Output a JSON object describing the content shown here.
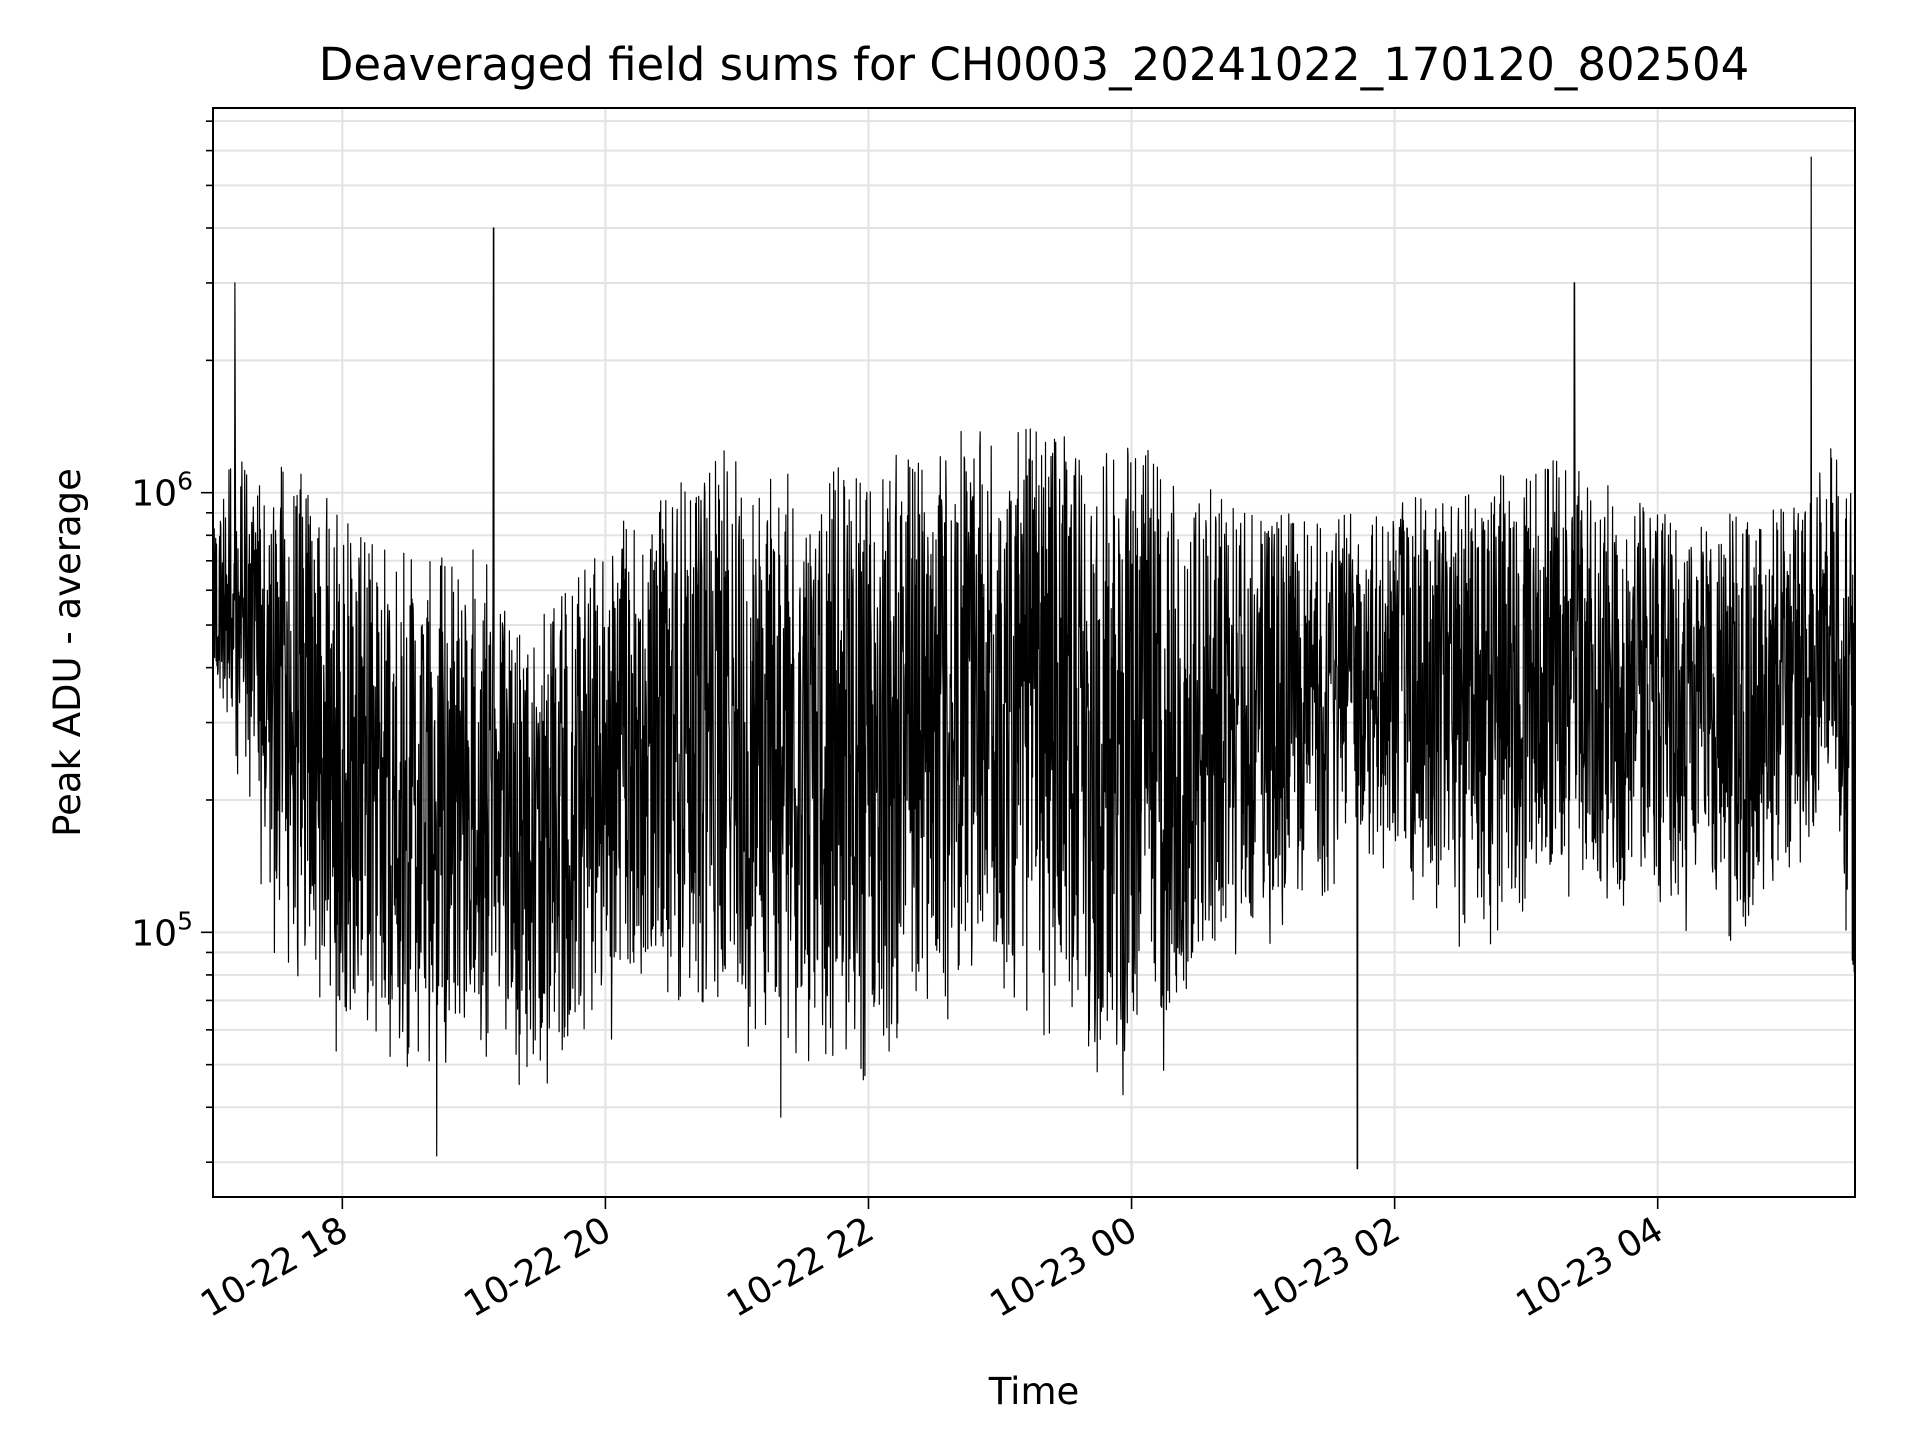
{
  "chart_data": {
    "type": "line",
    "title": "Deaveraged field sums for CH0003_20241022_170120_802504",
    "xlabel": "Time",
    "ylabel": "Peak ADU - average",
    "y_scale": "log",
    "ylim": [
      25000,
      7500000
    ],
    "xlim": [
      "2024-10-22 17:01",
      "2024-10-23 05:30"
    ],
    "grid": true,
    "line_color": "#000000",
    "x_ticks": [
      {
        "t": "2024-10-22 18:00",
        "label": "10-22 18"
      },
      {
        "t": "2024-10-22 20:00",
        "label": "10-22 20"
      },
      {
        "t": "2024-10-22 22:00",
        "label": "10-22 22"
      },
      {
        "t": "2024-10-23 00:00",
        "label": "10-23 00"
      },
      {
        "t": "2024-10-23 02:00",
        "label": "10-23 02"
      },
      {
        "t": "2024-10-23 04:00",
        "label": "10-23 04"
      }
    ],
    "y_ticks": [
      {
        "value": 100000,
        "base": "10",
        "exp": "5"
      },
      {
        "value": 1000000,
        "base": "10",
        "exp": "6"
      }
    ],
    "series": [
      {
        "x": [
          "2024-10-22 17:01",
          "2024-10-22 17:10",
          "2024-10-22 17:20",
          "2024-10-22 17:30",
          "2024-10-22 17:45",
          "2024-10-22 18:00",
          "2024-10-22 18:20",
          "2024-10-22 18:40",
          "2024-10-22 19:00",
          "2024-10-22 19:20",
          "2024-10-22 19:35",
          "2024-10-22 19:50",
          "2024-10-22 20:10",
          "2024-10-22 20:30",
          "2024-10-22 21:00",
          "2024-10-22 21:30",
          "2024-10-22 22:00",
          "2024-10-22 22:20",
          "2024-10-22 22:45",
          "2024-10-22 23:15",
          "2024-10-22 23:40",
          "2024-10-23 00:00",
          "2024-10-23 00:20",
          "2024-10-23 00:45",
          "2024-10-23 01:15",
          "2024-10-23 01:45",
          "2024-10-23 02:15",
          "2024-10-23 02:45",
          "2024-10-23 03:15",
          "2024-10-23 03:45",
          "2024-10-23 04:15",
          "2024-10-23 04:45",
          "2024-10-23 05:10",
          "2024-10-23 05:20",
          "2024-10-23 05:30"
        ],
        "envelope_high": [
          800000,
          1500000,
          1000000,
          1200000,
          1100000,
          900000,
          800000,
          700000,
          800000,
          500000,
          600000,
          700000,
          900000,
          1100000,
          1300000,
          1100000,
          1200000,
          1300000,
          1400000,
          1400000,
          1300000,
          1300000,
          1200000,
          1000000,
          900000,
          900000,
          1000000,
          1100000,
          1200000,
          1000000,
          900000,
          900000,
          1000000,
          1300000,
          1000000
        ],
        "envelope_low": [
          300000,
          250000,
          150000,
          80000,
          60000,
          50000,
          50000,
          45000,
          50000,
          45000,
          40000,
          50000,
          60000,
          70000,
          55000,
          50000,
          45000,
          50000,
          60000,
          60000,
          45000,
          40000,
          50000,
          80000,
          100000,
          150000,
          100000,
          80000,
          120000,
          100000,
          100000,
          90000,
          150000,
          200000,
          40000
        ],
        "spikes": [
          {
            "t": "2024-10-22 17:11",
            "value": 3000000
          },
          {
            "t": "2024-10-22 19:09",
            "value": 4000000
          },
          {
            "t": "2024-10-23 03:22",
            "value": 3000000
          },
          {
            "t": "2024-10-23 05:10",
            "value": 5800000
          },
          {
            "t": "2024-10-22 21:20",
            "value": 38000
          },
          {
            "t": "2024-10-23 01:43",
            "value": 29000
          },
          {
            "t": "2024-10-22 18:43",
            "value": 31000
          }
        ]
      }
    ]
  }
}
